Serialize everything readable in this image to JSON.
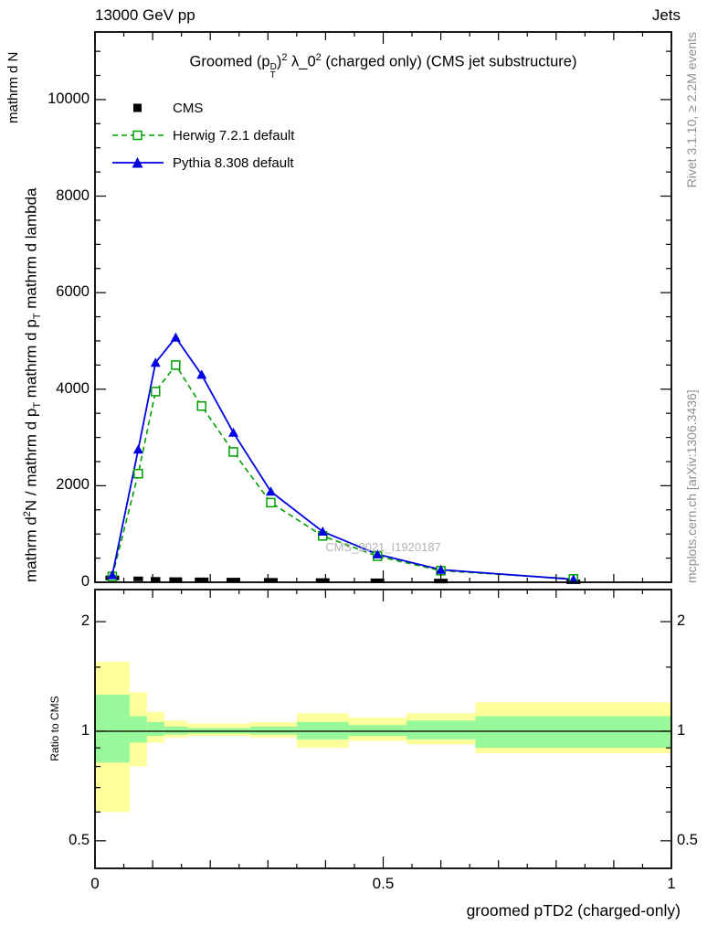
{
  "header": {
    "left": "13000 GeV pp",
    "right": "Jets"
  },
  "side_notes": {
    "top_right": "Rivet 3.1.10, ≥ 2.2M events",
    "bottom_right": "mcplots.cern.ch [arXiv:1306.3436]"
  },
  "watermark": "CMS_2021_I1920187",
  "main_panel": {
    "title": {
      "prefix": "Groomed (p",
      "p_sup": "D",
      "p_sub": "T",
      "after_p": ")",
      "exp1": "2",
      "lambda": " λ_0",
      "exp2": "2",
      "suffix": " (charged only) (CMS jet substructure)"
    },
    "y_label": {
      "d1": "mathrm d",
      "sup": "2",
      "d2": "N / mathrm d p",
      "sub1": "T",
      "d3": " mathrm d p",
      "sub2": "T",
      "d4": " mathrm d lambda"
    },
    "y_corner_label": "mathrm d N"
  },
  "legend": [
    {
      "label": "CMS"
    },
    {
      "label": "Herwig 7.2.1 default"
    },
    {
      "label": "Pythia 8.308 default"
    }
  ],
  "ratio_label": "Ratio to CMS",
  "x_axis_title": "groomed pTD2 (charged-only)",
  "chart_data": {
    "type": "line",
    "title": "Groomed (p_T^D)^2 λ_0^2 (charged only) (CMS jet substructure)",
    "xlabel": "groomed pTD2 (charged-only)",
    "ylabel": "mathrm d^2N / mathrm d p_T mathrm d p_T mathrm d lambda",
    "xlim": [
      0,
      1
    ],
    "ylim": [
      0,
      11400
    ],
    "x_ticks": [
      {
        "v": 0,
        "label": "0"
      },
      {
        "v": 0.5,
        "label": "0.5"
      },
      {
        "v": 1,
        "label": "1"
      }
    ],
    "x_minor_step": 0.05,
    "x_mid_step": 0.1,
    "y_ticks": [
      {
        "v": 0,
        "label": "0"
      },
      {
        "v": 2000,
        "label": "2000"
      },
      {
        "v": 4000,
        "label": "4000"
      },
      {
        "v": 6000,
        "label": "6000"
      },
      {
        "v": 8000,
        "label": "8000"
      },
      {
        "v": 10000,
        "label": "10000"
      }
    ],
    "y_minor_step": 500,
    "x_edges": [
      0,
      0.06,
      0.09,
      0.12,
      0.16,
      0.21,
      0.27,
      0.35,
      0.44,
      0.54,
      0.66,
      1.0
    ],
    "x": [
      0.03,
      0.075,
      0.105,
      0.14,
      0.185,
      0.24,
      0.305,
      0.395,
      0.49,
      0.6,
      0.83
    ],
    "series": [
      {
        "name": "CMS",
        "color": "#000000",
        "marker": "filled-square",
        "line": "none",
        "values": [
          90,
          70,
          60,
          55,
          50,
          45,
          40,
          35,
          30,
          25,
          10
        ]
      },
      {
        "name": "Herwig 7.2.1 default",
        "color": "#00a000",
        "marker": "open-square",
        "line": "dashed",
        "values": [
          120,
          2250,
          3950,
          4500,
          3650,
          2700,
          1650,
          960,
          540,
          240,
          70
        ]
      },
      {
        "name": "Pythia 8.308 default",
        "color": "#0000e0",
        "marker": "filled-triangle",
        "line": "solid",
        "values": [
          150,
          2750,
          4550,
          5070,
          4300,
          3100,
          1880,
          1050,
          580,
          260,
          60
        ]
      }
    ],
    "ratio": {
      "label": "Ratio to CMS",
      "scale": "log",
      "ylim": [
        0.42,
        2.45
      ],
      "unity_line": 1,
      "ticks": [
        {
          "v": 0.5,
          "label": "0.5"
        },
        {
          "v": 1,
          "label": "1"
        },
        {
          "v": 2,
          "label": "2"
        }
      ],
      "minor_ticks": [
        0.6,
        0.7,
        0.8,
        0.9,
        1.5
      ],
      "band_colors": {
        "outer": "#ffff9b",
        "inner": "#99f899"
      },
      "bands": [
        {
          "x": [
            0,
            0.06
          ],
          "outer": [
            0.6,
            1.55
          ],
          "inner": [
            0.82,
            1.26
          ]
        },
        {
          "x": [
            0.06,
            0.09
          ],
          "outer": [
            0.8,
            1.28
          ],
          "inner": [
            0.93,
            1.1
          ]
        },
        {
          "x": [
            0.09,
            0.12
          ],
          "outer": [
            0.93,
            1.13
          ],
          "inner": [
            0.97,
            1.06
          ]
        },
        {
          "x": [
            0.12,
            0.16
          ],
          "outer": [
            0.96,
            1.07
          ],
          "inner": [
            0.98,
            1.03
          ]
        },
        {
          "x": [
            0.16,
            0.21
          ],
          "outer": [
            0.97,
            1.05
          ],
          "inner": [
            0.985,
            1.02
          ]
        },
        {
          "x": [
            0.21,
            0.27
          ],
          "outer": [
            0.97,
            1.05
          ],
          "inner": [
            0.985,
            1.02
          ]
        },
        {
          "x": [
            0.27,
            0.35
          ],
          "outer": [
            0.96,
            1.06
          ],
          "inner": [
            0.98,
            1.03
          ]
        },
        {
          "x": [
            0.35,
            0.44
          ],
          "outer": [
            0.9,
            1.12
          ],
          "inner": [
            0.95,
            1.06
          ]
        },
        {
          "x": [
            0.44,
            0.54
          ],
          "outer": [
            0.94,
            1.09
          ],
          "inner": [
            0.97,
            1.04
          ]
        },
        {
          "x": [
            0.54,
            0.66
          ],
          "outer": [
            0.92,
            1.12
          ],
          "inner": [
            0.95,
            1.07
          ]
        },
        {
          "x": [
            0.66,
            1.0
          ],
          "outer": [
            0.87,
            1.2
          ],
          "inner": [
            0.9,
            1.1
          ]
        }
      ]
    }
  }
}
